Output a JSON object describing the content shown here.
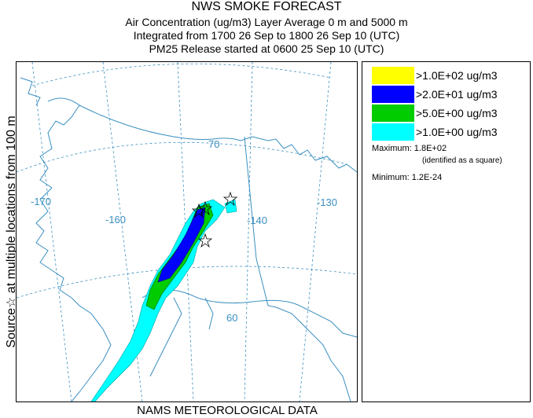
{
  "header": {
    "title": "NWS SMOKE FORECAST",
    "line2": "Air Concentration (ug/m3) Layer Average    0 m and  5000 m",
    "line3": "Integrated from 1700 26 Sep to 1800 26 Sep 10 (UTC)",
    "line4": "PM25 Release started at 0600 25 Sep 10 (UTC)"
  },
  "side_label": "Source☆  at multiple locations  from  100 m",
  "footer": "NAMS METEOROLOGICAL DATA",
  "map": {
    "longitude_labels": [
      "-170",
      "-160",
      "-140",
      "-130"
    ],
    "latitude_labels": [
      "70",
      "60"
    ],
    "colors": {
      "coast": "#3a8fc0",
      "graticule": "#3a8fc0",
      "boundary": "#3a8fc0"
    }
  },
  "legend": {
    "entries": [
      {
        "label": ">1.0E+02 ug/m3",
        "color": "#ffff00"
      },
      {
        "label": ">2.0E+01 ug/m3",
        "color": "#0000ff"
      },
      {
        "label": ">5.0E+00 ug/m3",
        "color": "#00cc00"
      },
      {
        "label": ">1.0E+00 ug/m3",
        "color": "#00ffff"
      }
    ],
    "maximum_label": "Maximum: 1.8E+02",
    "maximum_note": "(identified as a square)",
    "minimum_label": "Minimum: 1.2E-24"
  }
}
